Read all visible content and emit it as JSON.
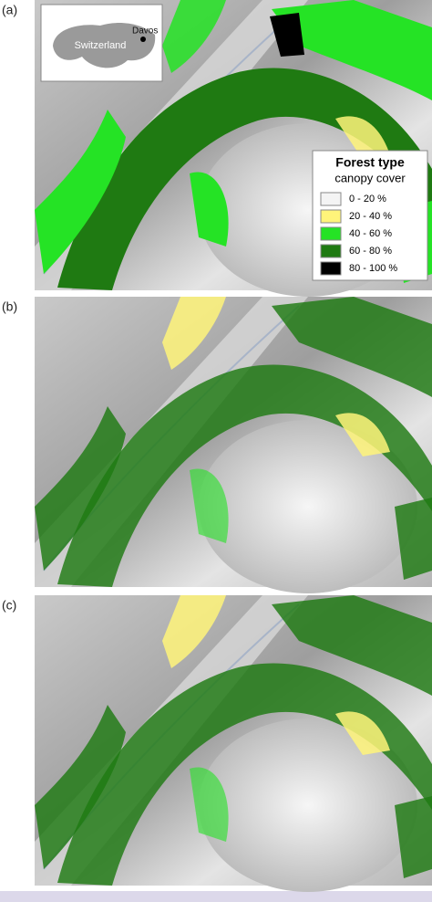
{
  "panels": [
    {
      "label": "(a)"
    },
    {
      "label": "(b)"
    },
    {
      "label": "(c)"
    }
  ],
  "inset": {
    "country": "Switzerland",
    "site": "Davos"
  },
  "legend": {
    "title": "Forest type",
    "subtitle": "canopy cover",
    "items": [
      {
        "label": "0 - 20 %",
        "color": "#f4f4f4"
      },
      {
        "label": "20 - 40 %",
        "color": "#fff47a"
      },
      {
        "label": "40 - 60 %",
        "color": "#25e325"
      },
      {
        "label": "60 - 80 %",
        "color": "#1f7a12"
      },
      {
        "label": "80 - 100 %",
        "color": "#000000"
      }
    ]
  }
}
